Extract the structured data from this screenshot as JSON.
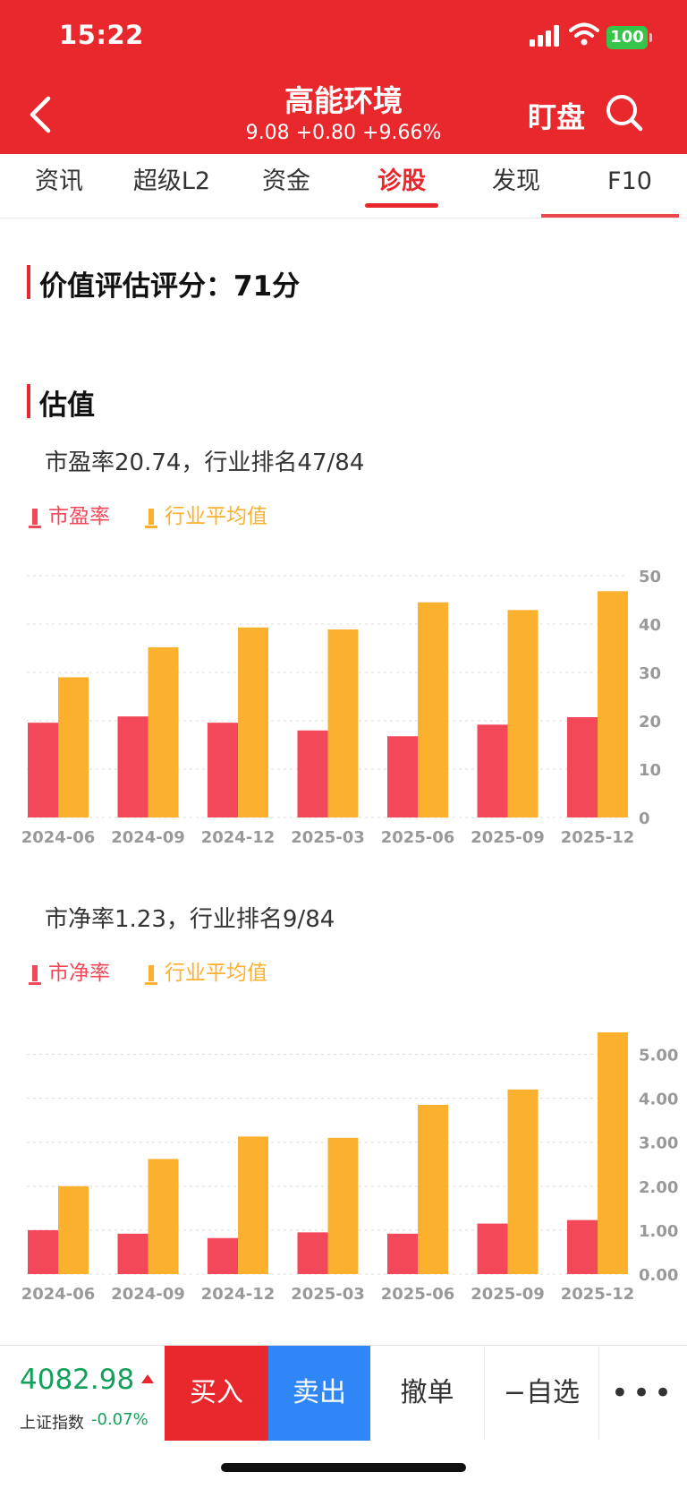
{
  "status_bar": {
    "time": "15:22",
    "battery": "100"
  },
  "header": {
    "stock_name": "高能环境",
    "quote": "9.08 +0.80 +9.66%",
    "watch_label": "盯盘",
    "colors": {
      "bg": "#e8282d"
    }
  },
  "tabs": [
    {
      "label": "资讯"
    },
    {
      "label": "超级L2"
    },
    {
      "label": "资金"
    },
    {
      "label": "诊股"
    },
    {
      "label": "发现"
    },
    {
      "label": "F10"
    }
  ],
  "active_tab": 3,
  "score": {
    "title": "价值评估评分：71分"
  },
  "valuation": {
    "title": "估值"
  },
  "chart_data": [
    {
      "type": "bar",
      "subtitle": "市盈率20.74，行业排名47/84",
      "legend": [
        "市盈率",
        "行业平均值"
      ],
      "categories": [
        "2024-06",
        "2024-09",
        "2024-12",
        "2025-03",
        "2025-06",
        "2025-09",
        "2025-12"
      ],
      "series": [
        {
          "name": "市盈率",
          "color": "#f34859",
          "values": [
            19.6,
            20.9,
            19.6,
            18.0,
            16.8,
            19.2,
            20.74
          ]
        },
        {
          "name": "行业平均值",
          "color": "#fbb02e",
          "values": [
            29.0,
            35.2,
            39.3,
            38.9,
            44.5,
            42.9,
            46.8
          ]
        }
      ],
      "ylim": [
        0,
        50
      ],
      "yticks": [
        "50",
        "40",
        "30",
        "20",
        "10",
        "0"
      ],
      "grid": true,
      "y_axis_side": "right"
    },
    {
      "type": "bar",
      "subtitle": "市净率1.23，行业排名9/84",
      "legend": [
        "市净率",
        "行业平均值"
      ],
      "categories": [
        "2024-06",
        "2024-09",
        "2024-12",
        "2025-03",
        "2025-06",
        "2025-09",
        "2025-12"
      ],
      "series": [
        {
          "name": "市净率",
          "color": "#f34859",
          "values": [
            1.0,
            0.92,
            0.82,
            0.95,
            0.92,
            1.15,
            1.23
          ]
        },
        {
          "name": "行业平均值",
          "color": "#fbb02e",
          "values": [
            2.0,
            2.62,
            3.13,
            3.1,
            3.85,
            4.2,
            5.5
          ]
        }
      ],
      "ylim": [
        0,
        5.5
      ],
      "yticks": [
        "5.00",
        "4.00",
        "3.00",
        "2.00",
        "1.00",
        "0.00"
      ],
      "ytick_values": [
        5,
        4,
        3,
        2,
        1,
        0
      ],
      "grid": true,
      "y_axis_side": "right"
    }
  ],
  "bottom_bar": {
    "index_value": "4082.98",
    "index_name": "上证指数",
    "index_change": "-0.07%",
    "buy_label": "买入",
    "sell_label": "卖出",
    "cancel_label": "撤单",
    "fav_label": "−自选",
    "more_label": "•••"
  }
}
